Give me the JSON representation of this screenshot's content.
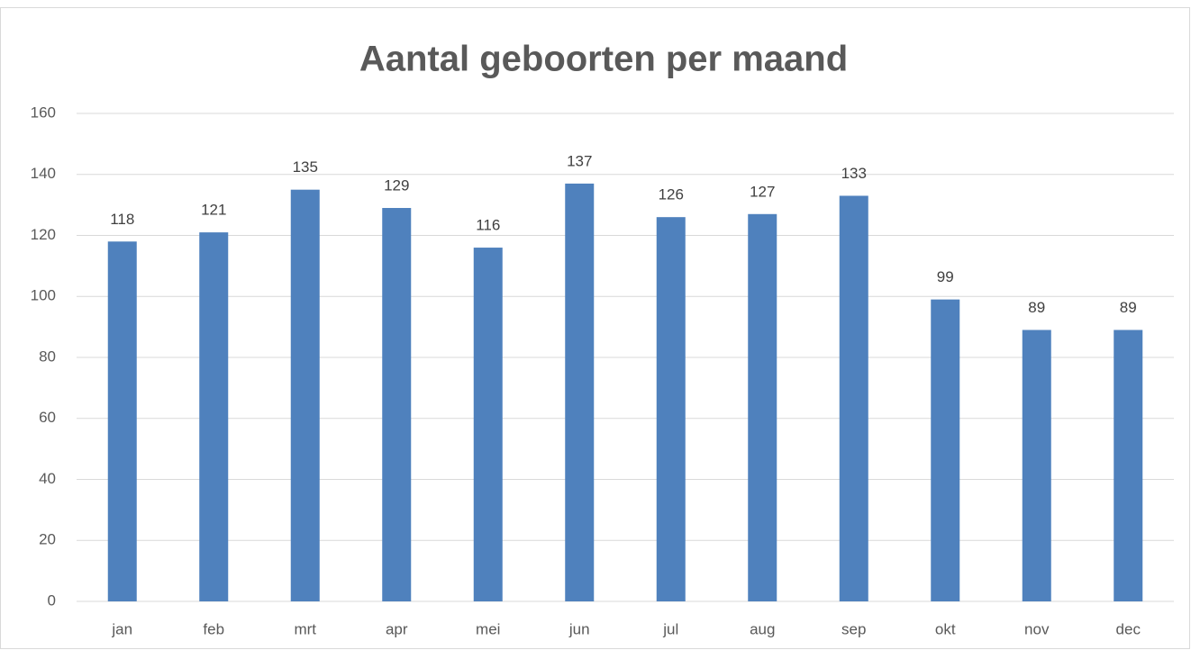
{
  "chart_data": {
    "type": "bar",
    "title": "Aantal geboorten per maand",
    "categories": [
      "jan",
      "feb",
      "mrt",
      "apr",
      "mei",
      "jun",
      "jul",
      "aug",
      "sep",
      "okt",
      "nov",
      "dec"
    ],
    "values": [
      118,
      121,
      135,
      129,
      116,
      137,
      126,
      127,
      133,
      99,
      89,
      89
    ],
    "color": "#4f81bd",
    "ylim": [
      0,
      160
    ],
    "yticks": [
      0,
      20,
      40,
      60,
      80,
      100,
      120,
      140,
      160
    ],
    "grid": true,
    "data_labels": true
  }
}
